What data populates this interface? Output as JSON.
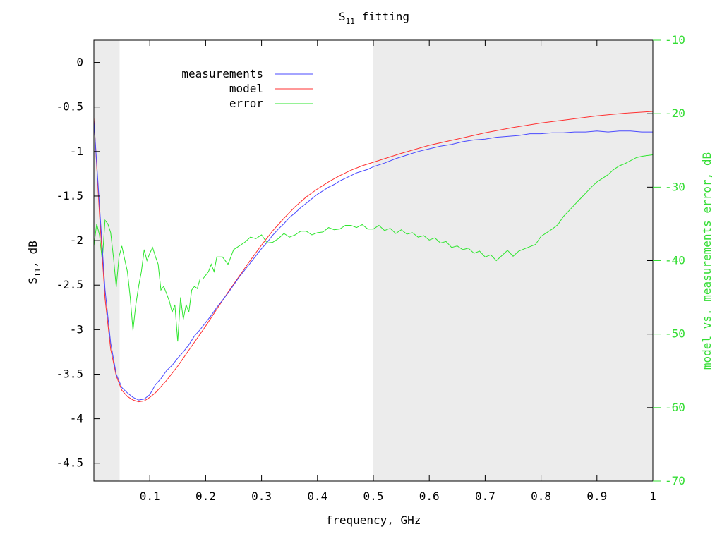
{
  "chart_data": {
    "type": "line",
    "title": {
      "main": "S",
      "sub": "11",
      "rest": " fitting"
    },
    "xlabel": "frequency, GHz",
    "ylabel": {
      "main": "S",
      "sub": "11",
      "rest": ", dB"
    },
    "y2label": "model vs. measurements error, dB",
    "xlim": [
      0.0,
      1.0
    ],
    "ylim": [
      -4.7,
      0.25
    ],
    "y2lim": [
      -70,
      -10
    ],
    "xticks": [
      0.1,
      0.2,
      0.3,
      0.4,
      0.5,
      0.6,
      0.7,
      0.8,
      0.9,
      1
    ],
    "xtick_labels": [
      "0.1",
      "0.2",
      "0.3",
      "0.4",
      "0.5",
      "0.6",
      "0.7",
      "0.8",
      "0.9",
      "1"
    ],
    "yticks": [
      0,
      -0.5,
      -1,
      -1.5,
      -2,
      -2.5,
      -3,
      -3.5,
      -4,
      -4.5
    ],
    "ytick_labels": [
      "0",
      "-0.5",
      "-1",
      "-1.5",
      "-2",
      "-2.5",
      "-3",
      "-3.5",
      "-4",
      "-4.5"
    ],
    "y2ticks": [
      -10,
      -20,
      -30,
      -40,
      -50,
      -60,
      -70
    ],
    "y2tick_labels": [
      "-10",
      "-20",
      "-30",
      "-40",
      "-50",
      "-60",
      "-70"
    ],
    "shaded_regions_x": [
      [
        0.0,
        0.046
      ],
      [
        0.5,
        1.0
      ]
    ],
    "legend_position": "top-left",
    "grid": false,
    "colors": {
      "measurements": "#4a4aff",
      "model": "#ff3030",
      "error": "#2ee62e",
      "shade": "#ececec",
      "right_axis": "#33dd33"
    },
    "series": [
      {
        "name": "measurements",
        "axis": "left",
        "x": [
          0.0,
          0.01,
          0.02,
          0.03,
          0.04,
          0.05,
          0.06,
          0.07,
          0.08,
          0.09,
          0.1,
          0.11,
          0.12,
          0.13,
          0.14,
          0.15,
          0.16,
          0.17,
          0.18,
          0.19,
          0.2,
          0.21,
          0.22,
          0.23,
          0.24,
          0.25,
          0.26,
          0.27,
          0.28,
          0.29,
          0.3,
          0.31,
          0.32,
          0.33,
          0.34,
          0.35,
          0.36,
          0.37,
          0.38,
          0.39,
          0.4,
          0.41,
          0.42,
          0.43,
          0.44,
          0.45,
          0.46,
          0.47,
          0.48,
          0.49,
          0.5,
          0.52,
          0.54,
          0.56,
          0.58,
          0.6,
          0.62,
          0.64,
          0.66,
          0.68,
          0.7,
          0.72,
          0.74,
          0.76,
          0.78,
          0.8,
          0.82,
          0.84,
          0.86,
          0.88,
          0.9,
          0.92,
          0.94,
          0.96,
          0.98,
          1.0
        ],
        "values": [
          -0.65,
          -1.6,
          -2.55,
          -3.15,
          -3.5,
          -3.65,
          -3.71,
          -3.76,
          -3.79,
          -3.78,
          -3.73,
          -3.62,
          -3.55,
          -3.46,
          -3.4,
          -3.32,
          -3.25,
          -3.17,
          -3.07,
          -3.0,
          -2.92,
          -2.84,
          -2.75,
          -2.67,
          -2.59,
          -2.5,
          -2.41,
          -2.33,
          -2.25,
          -2.17,
          -2.09,
          -2.02,
          -1.94,
          -1.87,
          -1.81,
          -1.74,
          -1.69,
          -1.63,
          -1.58,
          -1.53,
          -1.48,
          -1.44,
          -1.4,
          -1.37,
          -1.33,
          -1.3,
          -1.27,
          -1.24,
          -1.22,
          -1.2,
          -1.17,
          -1.13,
          -1.08,
          -1.04,
          -1.0,
          -0.97,
          -0.94,
          -0.92,
          -0.89,
          -0.87,
          -0.86,
          -0.84,
          -0.83,
          -0.82,
          -0.8,
          -0.8,
          -0.79,
          -0.79,
          -0.78,
          -0.78,
          -0.77,
          -0.78,
          -0.77,
          -0.77,
          -0.78,
          -0.78
        ]
      },
      {
        "name": "model",
        "axis": "left",
        "x": [
          0.0,
          0.01,
          0.02,
          0.03,
          0.04,
          0.05,
          0.06,
          0.07,
          0.08,
          0.09,
          0.1,
          0.11,
          0.12,
          0.13,
          0.14,
          0.15,
          0.16,
          0.17,
          0.18,
          0.19,
          0.2,
          0.22,
          0.24,
          0.26,
          0.28,
          0.3,
          0.32,
          0.34,
          0.36,
          0.38,
          0.4,
          0.42,
          0.44,
          0.46,
          0.48,
          0.5,
          0.55,
          0.6,
          0.65,
          0.7,
          0.75,
          0.8,
          0.85,
          0.9,
          0.95,
          1.0
        ],
        "values": [
          -0.62,
          -1.7,
          -2.65,
          -3.22,
          -3.52,
          -3.68,
          -3.75,
          -3.79,
          -3.81,
          -3.8,
          -3.76,
          -3.71,
          -3.64,
          -3.57,
          -3.49,
          -3.41,
          -3.32,
          -3.23,
          -3.14,
          -3.05,
          -2.96,
          -2.77,
          -2.58,
          -2.4,
          -2.22,
          -2.05,
          -1.89,
          -1.75,
          -1.62,
          -1.51,
          -1.42,
          -1.34,
          -1.27,
          -1.21,
          -1.16,
          -1.12,
          -1.02,
          -0.93,
          -0.86,
          -0.79,
          -0.73,
          -0.68,
          -0.64,
          -0.6,
          -0.57,
          -0.55
        ]
      },
      {
        "name": "error",
        "axis": "right",
        "x": [
          0.0,
          0.005,
          0.01,
          0.015,
          0.02,
          0.025,
          0.03,
          0.035,
          0.04,
          0.045,
          0.05,
          0.055,
          0.06,
          0.065,
          0.07,
          0.075,
          0.08,
          0.085,
          0.09,
          0.095,
          0.1,
          0.105,
          0.11,
          0.115,
          0.12,
          0.125,
          0.13,
          0.135,
          0.14,
          0.145,
          0.15,
          0.155,
          0.16,
          0.165,
          0.17,
          0.175,
          0.18,
          0.185,
          0.19,
          0.195,
          0.2,
          0.205,
          0.21,
          0.215,
          0.22,
          0.23,
          0.24,
          0.25,
          0.26,
          0.27,
          0.28,
          0.29,
          0.3,
          0.31,
          0.32,
          0.33,
          0.34,
          0.35,
          0.36,
          0.37,
          0.38,
          0.39,
          0.4,
          0.41,
          0.42,
          0.43,
          0.44,
          0.45,
          0.46,
          0.47,
          0.48,
          0.49,
          0.5,
          0.51,
          0.52,
          0.53,
          0.54,
          0.55,
          0.56,
          0.57,
          0.58,
          0.59,
          0.6,
          0.61,
          0.62,
          0.63,
          0.64,
          0.65,
          0.66,
          0.67,
          0.68,
          0.69,
          0.7,
          0.71,
          0.72,
          0.73,
          0.74,
          0.75,
          0.76,
          0.77,
          0.78,
          0.79,
          0.8,
          0.81,
          0.82,
          0.83,
          0.84,
          0.85,
          0.86,
          0.87,
          0.88,
          0.89,
          0.9,
          0.91,
          0.92,
          0.93,
          0.94,
          0.95,
          0.96,
          0.97,
          0.98,
          0.99,
          1.0
        ],
        "values": [
          -38,
          -35,
          -36.5,
          -40,
          -34.5,
          -35,
          -36.2,
          -39.5,
          -43.6,
          -39.5,
          -38,
          -39.8,
          -41.5,
          -45,
          -49.5,
          -46,
          -43.5,
          -41.5,
          -38.5,
          -40,
          -39,
          -38.2,
          -39.4,
          -40.5,
          -44,
          -43.5,
          -44.5,
          -45.5,
          -47,
          -46,
          -51,
          -45,
          -48,
          -46,
          -47,
          -44,
          -43.5,
          -43.8,
          -42.5,
          -42.5,
          -42,
          -41.5,
          -40.5,
          -41.5,
          -39.5,
          -39.5,
          -40.5,
          -38.5,
          -38,
          -37.5,
          -36.8,
          -37,
          -36.5,
          -37.6,
          -37.5,
          -37,
          -36.3,
          -36.8,
          -36.5,
          -36,
          -36,
          -36.5,
          -36.2,
          -36.1,
          -35.5,
          -35.8,
          -35.7,
          -35.2,
          -35.2,
          -35.5,
          -35.1,
          -35.7,
          -35.7,
          -35.2,
          -35.9,
          -35.6,
          -36.3,
          -35.8,
          -36.4,
          -36.2,
          -36.8,
          -36.6,
          -37.2,
          -36.9,
          -37.6,
          -37.4,
          -38.2,
          -38,
          -38.5,
          -38.3,
          -39,
          -38.7,
          -39.5,
          -39.2,
          -40,
          -39.3,
          -38.6,
          -39.4,
          -38.7,
          -38.4,
          -38.1,
          -37.8,
          -36.7,
          -36.2,
          -35.7,
          -35.1,
          -34,
          -33.2,
          -32.4,
          -31.6,
          -30.8,
          -30,
          -29.3,
          -28.8,
          -28.3,
          -27.6,
          -27.1,
          -26.8,
          -26.4,
          -26,
          -25.8,
          -25.7,
          -25.6
        ]
      }
    ]
  }
}
